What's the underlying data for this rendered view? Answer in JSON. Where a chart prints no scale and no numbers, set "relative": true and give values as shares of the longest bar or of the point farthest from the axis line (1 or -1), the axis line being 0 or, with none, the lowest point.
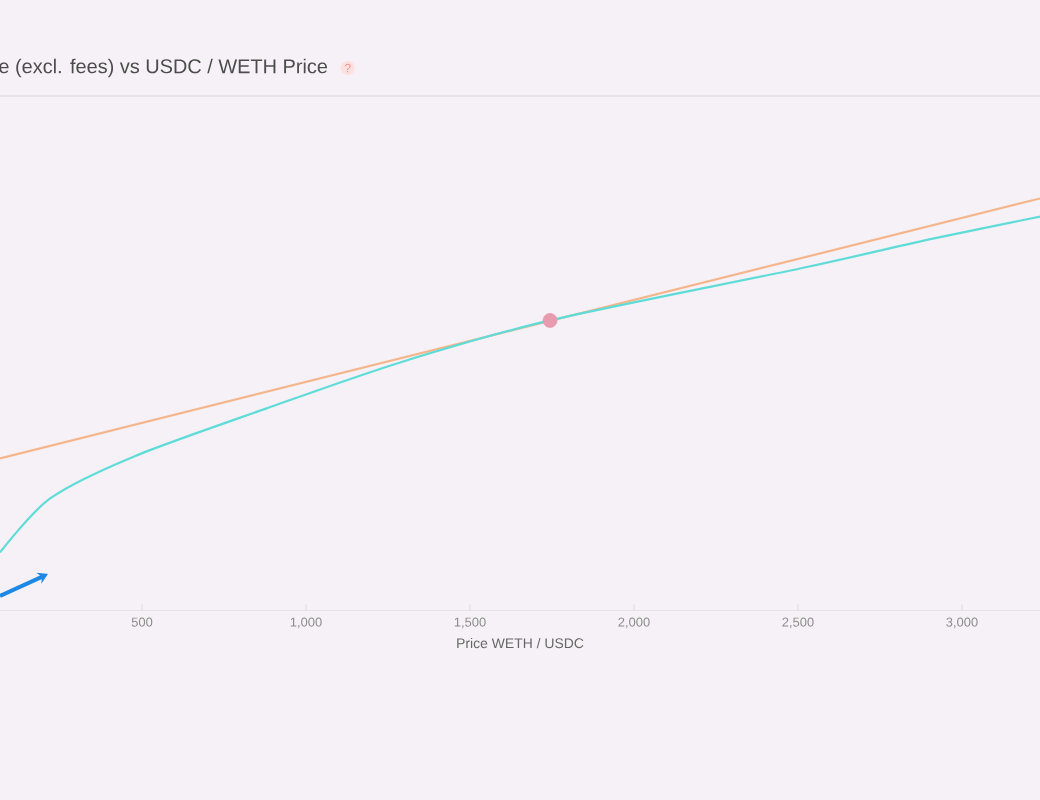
{
  "chart_data": {
    "type": "line",
    "title": "e (excl. fees) vs USDC / WETH Price",
    "xlabel": "Price WETH / USDC",
    "relative": true,
    "annotations": [
      "?"
    ],
    "xlim": [
      67,
      3238
    ],
    "xticks": [
      500,
      {
        "value": 1000,
        "label": "1,000"
      },
      {
        "value": 1500,
        "label": "1,500"
      },
      {
        "value": 2000,
        "label": "2,000"
      },
      {
        "value": 2500,
        "label": "2,500"
      },
      {
        "value": 3000,
        "label": "3,000"
      }
    ],
    "series": [
      {
        "color": "#f5b58a",
        "x": [
          67,
          3238
        ],
        "values": [
          0.369,
          1.0
        ]
      },
      {
        "color": "#5fdcd8",
        "x": [
          67,
          220,
          476,
          878,
          1287,
          1744,
          2506,
          2915,
          3238
        ],
        "values": [
          0.141,
          0.272,
          0.374,
          0.49,
          0.602,
          0.704,
          0.83,
          0.903,
          0.956
        ]
      },
      {
        "type": "scatter",
        "color": "#e89aae",
        "x": [
          1744
        ],
        "values": [
          0.704
        ]
      }
    ]
  }
}
